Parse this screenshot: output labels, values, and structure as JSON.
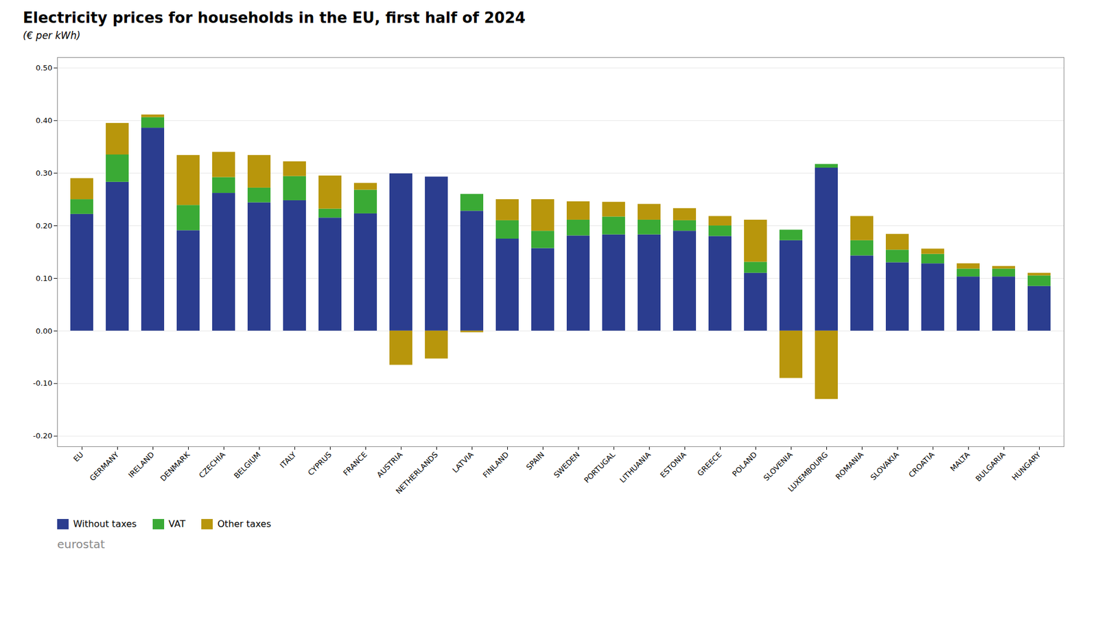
{
  "chart_data": {
    "type": "bar",
    "title": "Electricity prices for households in the EU, first half of 2024",
    "subtitle": "(€ per kWh)",
    "categories": [
      "EU",
      "GERMANY",
      "IRELAND",
      "DENMARK",
      "CZECHIA",
      "BELGIUM",
      "ITALY",
      "CYPRUS",
      "FRANCE",
      "AUSTRIA",
      "NETHERLANDS",
      "LATVIA",
      "FINLAND",
      "SPAIN",
      "SWEDEN",
      "PORTUGAL",
      "LITHUANIA",
      "ESTONIA",
      "GREECE",
      "POLAND",
      "SLOVENIA",
      "LUXEMBOURG",
      "ROMANIA",
      "SLOVAKIA",
      "CROATIA",
      "MALTA",
      "BULGARIA",
      "HUNGARY"
    ],
    "series": [
      {
        "name": "Without taxes",
        "color": "#2b3d8f",
        "values": [
          0.222,
          0.283,
          0.386,
          0.191,
          0.262,
          0.244,
          0.248,
          0.215,
          0.223,
          0.299,
          0.293,
          0.228,
          0.175,
          0.157,
          0.181,
          0.183,
          0.183,
          0.19,
          0.18,
          0.11,
          0.172,
          0.31,
          0.143,
          0.13,
          0.128,
          0.103,
          0.103,
          0.085
        ]
      },
      {
        "name": "VAT",
        "color": "#3aaa35",
        "values": [
          0.028,
          0.052,
          0.02,
          0.048,
          0.03,
          0.028,
          0.046,
          0.017,
          0.045,
          0.0,
          0.0,
          0.032,
          0.035,
          0.033,
          0.03,
          0.034,
          0.028,
          0.02,
          0.02,
          0.021,
          0.02,
          0.007,
          0.029,
          0.024,
          0.018,
          0.015,
          0.015,
          0.02
        ]
      },
      {
        "name": "Other taxes",
        "color": "#b8960c",
        "values": [
          0.04,
          0.06,
          0.005,
          0.095,
          0.048,
          0.062,
          0.028,
          0.063,
          0.013,
          -0.065,
          -0.053,
          -0.003,
          0.04,
          0.06,
          0.035,
          0.028,
          0.03,
          0.023,
          0.018,
          0.08,
          -0.09,
          -0.13,
          0.046,
          0.03,
          0.01,
          0.01,
          0.005,
          0.005
        ]
      }
    ],
    "ylim": [
      -0.22,
      0.52
    ],
    "yticks": [
      {
        "value": -0.2,
        "label": "-0.20"
      },
      {
        "value": -0.1,
        "label": "-0.10"
      },
      {
        "value": 0,
        "label": "0.00"
      },
      {
        "value": 0.1,
        "label": "0.10"
      },
      {
        "value": 0.2,
        "label": "0.20"
      },
      {
        "value": 0.3,
        "label": "0.30"
      },
      {
        "value": 0.4,
        "label": "0.40"
      },
      {
        "value": 0.5,
        "label": "0.50"
      }
    ],
    "stacked": true,
    "grid": true,
    "legend": "lower left",
    "annotations": [
      "eurostat"
    ]
  }
}
